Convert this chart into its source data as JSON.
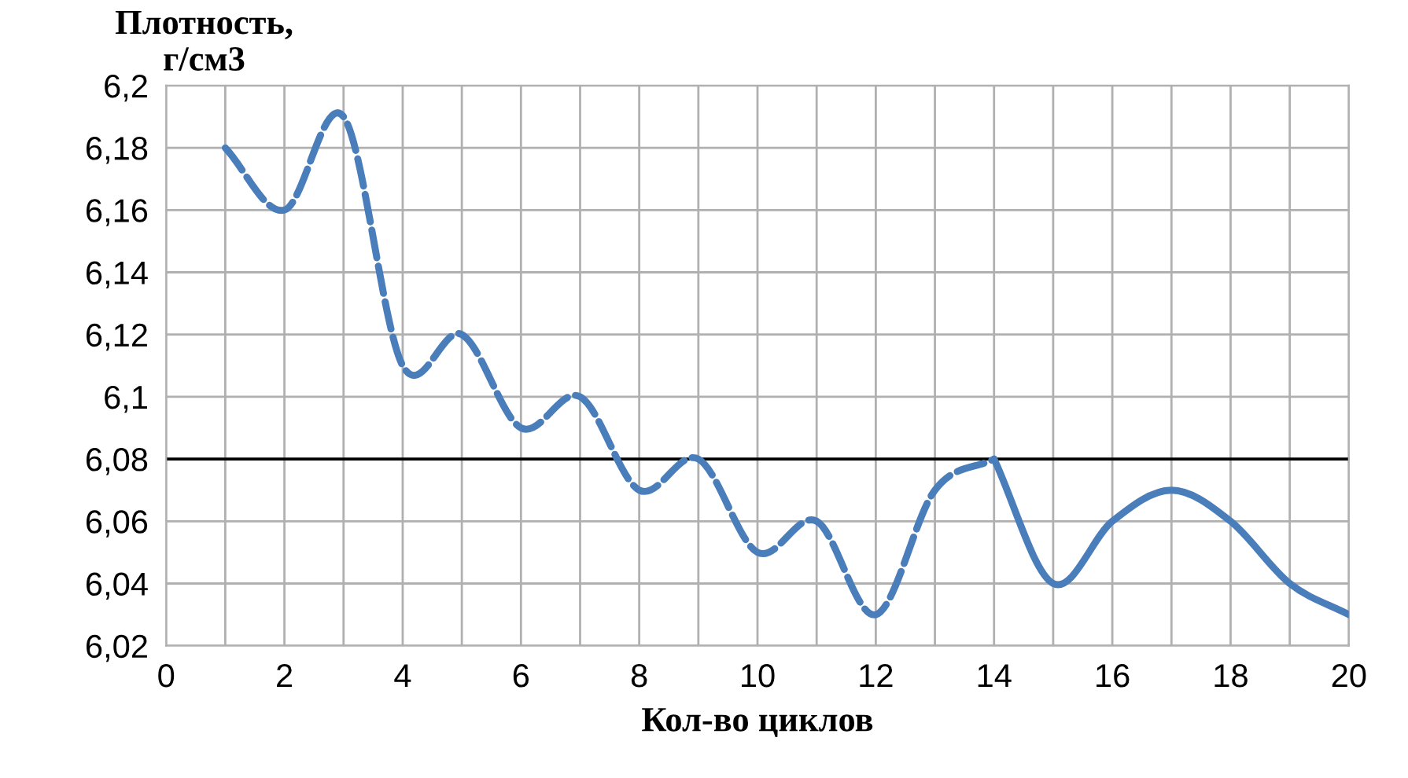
{
  "chart_data": {
    "type": "line",
    "xlabel": "Кол-во циклов",
    "ylabel": "Плотность,\nг/см3",
    "series": [
      {
        "color": "#4a7ebb",
        "line_style": "dashed",
        "x": [
          1,
          2,
          3,
          4,
          5,
          6,
          7,
          8,
          9,
          10,
          11,
          12,
          13,
          14
        ],
        "values": [
          6.18,
          6.16,
          6.19,
          6.11,
          6.12,
          6.09,
          6.1,
          6.07,
          6.08,
          6.05,
          6.06,
          6.03,
          6.07,
          6.08
        ]
      },
      {
        "color": "#4a7ebb",
        "line_style": "solid",
        "x": [
          14,
          15,
          16,
          17,
          18,
          19,
          20
        ],
        "values": [
          6.08,
          6.04,
          6.06,
          6.07,
          6.06,
          6.04,
          6.03
        ]
      }
    ],
    "ref_lines": [
      {
        "axis": "y",
        "value": 6.08,
        "color": "#000000"
      }
    ],
    "xlim": [
      0,
      20
    ],
    "xticks": [
      0,
      {
        "value": 1,
        "label": null
      },
      2,
      {
        "value": 3,
        "label": null
      },
      4,
      {
        "value": 5,
        "label": null
      },
      6,
      {
        "value": 7,
        "label": null
      },
      8,
      {
        "value": 9,
        "label": null
      },
      10,
      {
        "value": 11,
        "label": null
      },
      12,
      {
        "value": 13,
        "label": null
      },
      14,
      {
        "value": 15,
        "label": null
      },
      16,
      {
        "value": 17,
        "label": null
      },
      18,
      {
        "value": 19,
        "label": null
      },
      20
    ],
    "ylim": [
      6.02,
      6.2
    ],
    "yticks": [
      {
        "value": 6.02,
        "label": "6,02"
      },
      {
        "value": 6.04,
        "label": "6,04"
      },
      {
        "value": 6.06,
        "label": "6,06"
      },
      {
        "value": 6.08,
        "label": "6,08"
      },
      {
        "value": 6.1,
        "label": "6,1"
      },
      {
        "value": 6.12,
        "label": "6,12"
      },
      {
        "value": 6.14,
        "label": "6,14"
      },
      {
        "value": 6.16,
        "label": "6,16"
      },
      {
        "value": 6.18,
        "label": "6,18"
      },
      {
        "value": 6.2,
        "label": "6,2"
      }
    ],
    "grid": true,
    "marker": "none"
  }
}
